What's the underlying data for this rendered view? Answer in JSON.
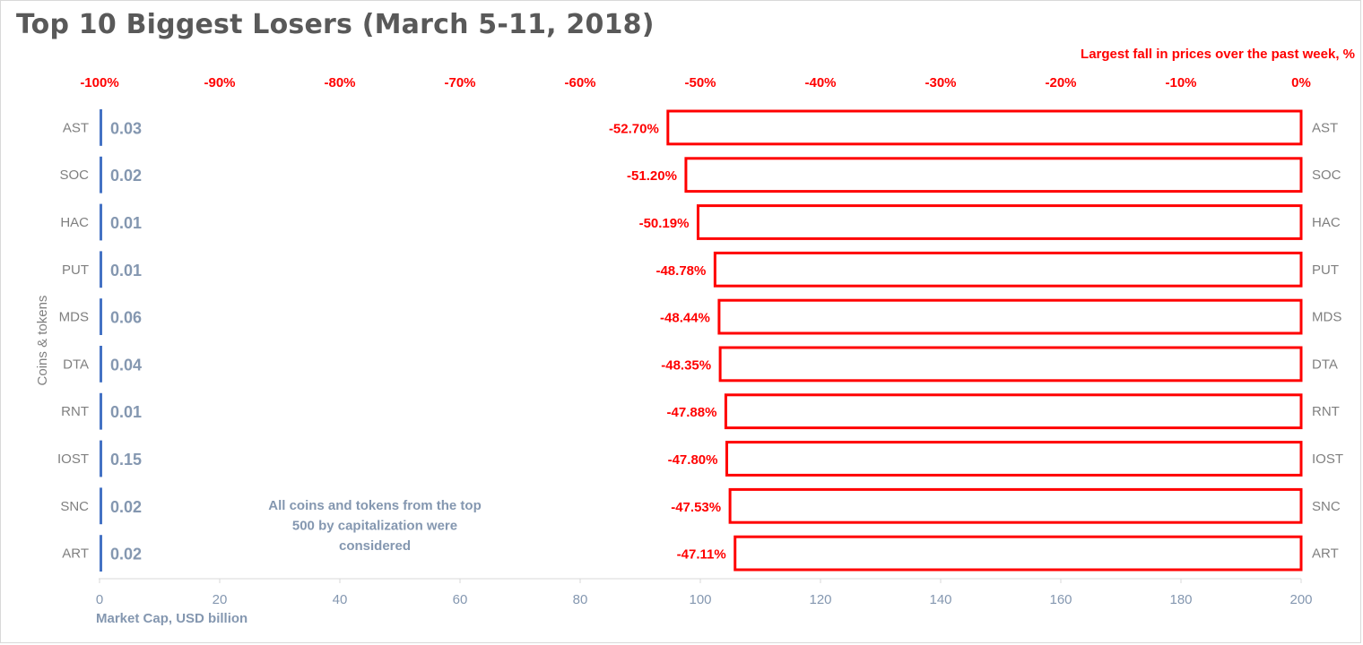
{
  "title": "Top 10 Biggest Losers (March 5-11, 2018)",
  "chart_data": {
    "type": "bar",
    "orientation": "horizontal",
    "categories": [
      "AST",
      "SOC",
      "HAC",
      "PUT",
      "MDS",
      "DTA",
      "RNT",
      "IOST",
      "SNC",
      "ART"
    ],
    "series": [
      {
        "name": "Largest fall in prices over the past week, %",
        "axis": "top",
        "values": [
          -52.7,
          -51.2,
          -50.19,
          -48.78,
          -48.44,
          -48.35,
          -47.88,
          -47.8,
          -47.53,
          -47.11
        ],
        "labels": [
          "-52.70%",
          "-51.20%",
          "-50.19%",
          "-48.78%",
          "-48.44%",
          "-48.35%",
          "-47.88%",
          "-47.80%",
          "-47.53%",
          "-47.11%"
        ],
        "color": "#ff0000"
      },
      {
        "name": "Market Cap,  USD billion",
        "axis": "bottom",
        "values": [
          0.03,
          0.02,
          0.01,
          0.01,
          0.06,
          0.04,
          0.01,
          0.15,
          0.02,
          0.02
        ],
        "labels": [
          "0.03",
          "0.02",
          "0.01",
          "0.01",
          "0.06",
          "0.04",
          "0.01",
          "0.15",
          "0.02",
          "0.02"
        ],
        "color": "#4472c4"
      }
    ],
    "top_axis": {
      "title": "Largest fall in prices over the past week, %",
      "range": [
        -100,
        0
      ],
      "ticks": [
        "-100%",
        "-90%",
        "-80%",
        "-70%",
        "-60%",
        "-50%",
        "-40%",
        "-30%",
        "-20%",
        "-10%",
        "0%"
      ]
    },
    "bottom_axis": {
      "title": "Market Cap,  USD billion",
      "range": [
        0,
        200
      ],
      "ticks": [
        "0",
        "20",
        "40",
        "60",
        "80",
        "100",
        "120",
        "140",
        "160",
        "180",
        "200"
      ]
    },
    "ylabel": "Coins & tokens",
    "annotation": [
      "All coins and tokens from the top",
      "500 by capitalization were",
      "considered"
    ],
    "grid": false,
    "legend": "none"
  }
}
